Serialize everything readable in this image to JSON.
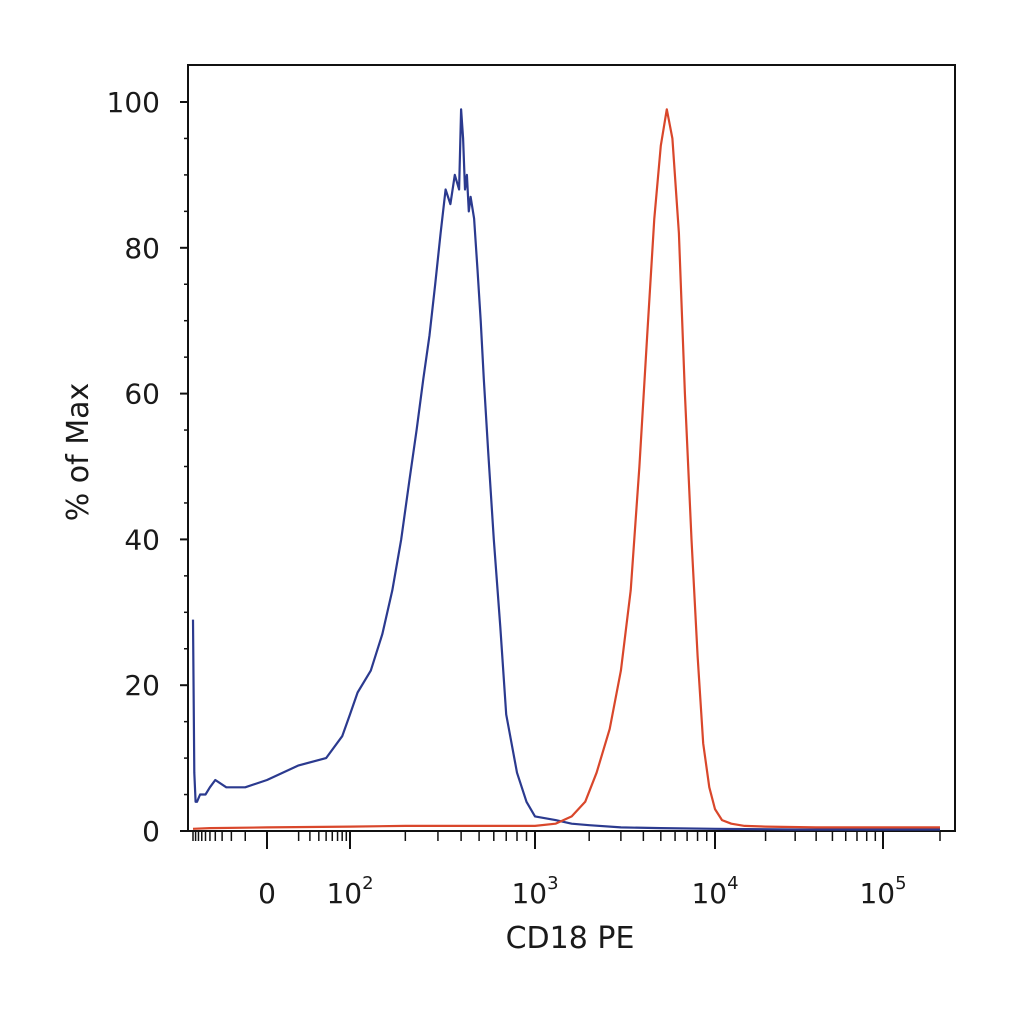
{
  "chart_data": {
    "type": "line",
    "title": "",
    "xlabel": "CD18 PE",
    "ylabel": "% of Max",
    "x_scale": "biexponential",
    "ylim": [
      0,
      100
    ],
    "y_ticks": [
      0,
      20,
      40,
      60,
      80,
      100
    ],
    "x_tick_labels": [
      {
        "value": 0,
        "base": "0",
        "exp": ""
      },
      {
        "value": 100,
        "base": "10",
        "exp": "2"
      },
      {
        "value": 1000,
        "base": "10",
        "exp": "3"
      },
      {
        "value": 10000,
        "base": "10",
        "exp": "4"
      },
      {
        "value": 100000,
        "base": "10",
        "exp": "5"
      }
    ],
    "grid": false,
    "legend": "none",
    "series": [
      {
        "color": "#2b3a8f",
        "x": [
          -200,
          -190,
          -180,
          -170,
          -150,
          -120,
          -100,
          -80,
          -50,
          -20,
          0,
          20,
          50,
          80,
          100,
          110,
          130,
          150,
          170,
          190,
          210,
          230,
          250,
          270,
          290,
          310,
          330,
          350,
          370,
          390,
          400,
          410,
          420,
          430,
          440,
          450,
          470,
          490,
          510,
          530,
          560,
          600,
          650,
          700,
          800,
          900,
          1000,
          1300,
          1600,
          2000,
          3000,
          5000,
          10000,
          30000,
          100000,
          200000
        ],
        "y": [
          29,
          8,
          4,
          4,
          5,
          5,
          6,
          7,
          6,
          6,
          7,
          9,
          10,
          13,
          16,
          19,
          22,
          27,
          33,
          40,
          48,
          55,
          62,
          68,
          75,
          82,
          88,
          86,
          90,
          88,
          99,
          95,
          88,
          90,
          85,
          87,
          84,
          77,
          70,
          62,
          52,
          40,
          28,
          16,
          8,
          4,
          2,
          1.5,
          1,
          0.8,
          0.5,
          0.4,
          0.3,
          0.2,
          0.2,
          0.2
        ]
      },
      {
        "color": "#d9472b",
        "x": [
          -200,
          -100,
          0,
          100,
          200,
          500,
          1000,
          1300,
          1600,
          1900,
          2200,
          2600,
          3000,
          3400,
          3800,
          4200,
          4600,
          5000,
          5400,
          5800,
          6300,
          6800,
          7400,
          8000,
          8600,
          9300,
          10000,
          11000,
          12500,
          15000,
          20000,
          40000,
          100000,
          200000
        ],
        "y": [
          0.3,
          0.4,
          0.5,
          0.6,
          0.7,
          0.7,
          0.7,
          1,
          2,
          4,
          8,
          14,
          22,
          33,
          50,
          68,
          84,
          94,
          99,
          95,
          82,
          60,
          40,
          24,
          12,
          6,
          3,
          1.5,
          1,
          0.7,
          0.6,
          0.5,
          0.5,
          0.5
        ]
      }
    ]
  }
}
